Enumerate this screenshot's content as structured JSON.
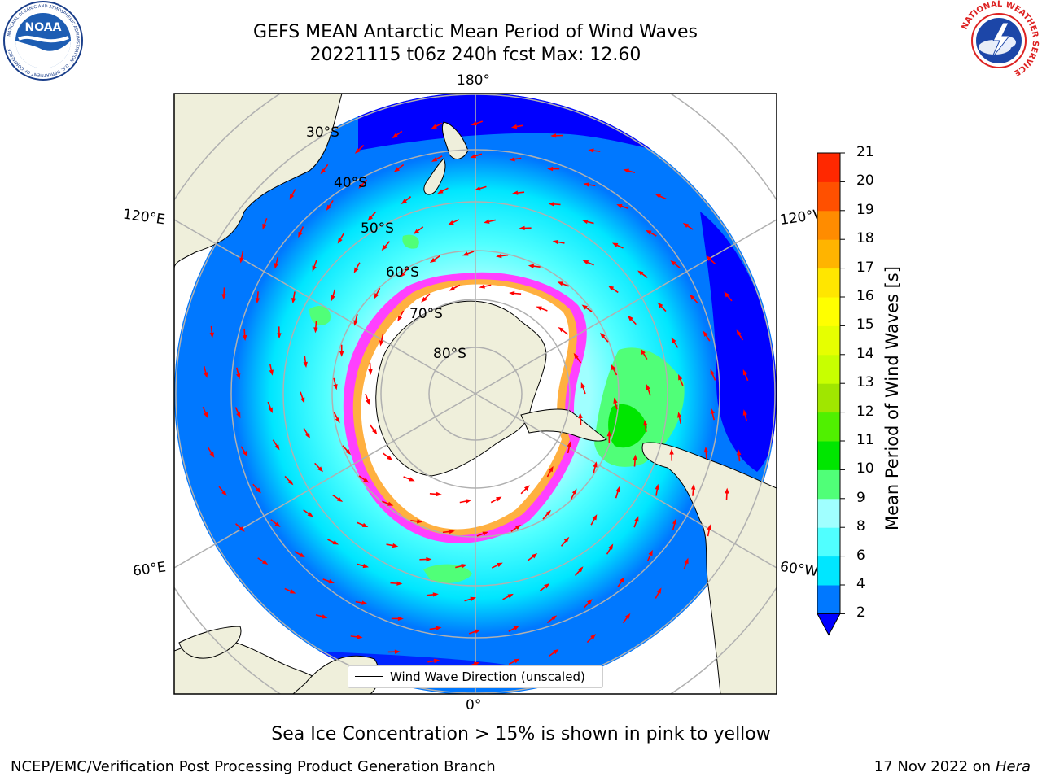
{
  "title": {
    "line1": "GEFS MEAN Antarctic Mean Period of Wind Waves",
    "line2": "20221115 t06z 240h fcst   Max: 12.60"
  },
  "logos": {
    "noaa_text": "NOAA",
    "noaa_ring": "NATIONAL OCEANIC AND ATMOSPHERIC ADMINISTRATION · U.S. DEPARTMENT OF COMMERCE",
    "nws_ring": "NATIONAL WEATHER SERVICE"
  },
  "map": {
    "lon_labels": {
      "top": "180°",
      "bottom": "0°",
      "upper_left": "120°E",
      "lower_left": "60°E",
      "upper_right": "120°W",
      "lower_right": "60°W"
    },
    "lat_labels": [
      "30°S",
      "40°S",
      "50°S",
      "60°S",
      "70°S",
      "80°S"
    ],
    "legend": "Wind Wave Direction (unscaled)",
    "colors": {
      "open_ocean_low": "#0000ff",
      "ocean_2_4": "#0078ff",
      "ocean_4_6": "#00e6ff",
      "ocean_6_8": "#50ffff",
      "ocean_8_9": "#a0ffff",
      "ocean_9_10": "#50ff78",
      "land": "#efefdb",
      "sea_ice_pink": "#ff40ff",
      "sea_ice_orange": "#ffb040",
      "ice_shelf": "#ffffff",
      "arrows": "#ff0000"
    }
  },
  "colorbar": {
    "label": "Mean Period of Wind Waves [s]",
    "ticks": [
      "2",
      "4",
      "6",
      "8",
      "9",
      "10",
      "11",
      "12",
      "13",
      "14",
      "15",
      "16",
      "17",
      "18",
      "19",
      "20",
      "21"
    ],
    "colors": [
      "#0078ff",
      "#00e6ff",
      "#50ffff",
      "#a0ffff",
      "#50ff78",
      "#00e600",
      "#50f000",
      "#a0e600",
      "#c8ff00",
      "#e6ff00",
      "#ffff00",
      "#ffe600",
      "#ffb400",
      "#ff8c00",
      "#ff5000",
      "#ff2800",
      "#ff0000"
    ],
    "under_color": "#0000ff"
  },
  "footer": {
    "sea_ice_note": "Sea Ice Concentration > 15% is shown in pink to yellow",
    "credit": "NCEP/EMC/Verification Post Processing Product Generation Branch",
    "date": "17 Nov 2022 on",
    "machine": "Hera"
  }
}
